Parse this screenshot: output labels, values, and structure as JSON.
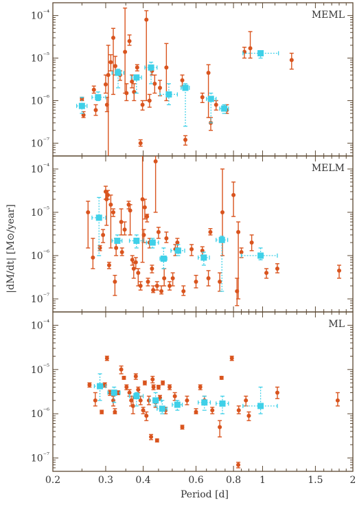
{
  "chart_data": {
    "type": "scatter",
    "xlabel": "Period [d]",
    "ylabel": "|dM/dt| [M⊙/year]",
    "xscale": "log",
    "yscale": "log",
    "xlim": [
      0.2,
      2.0
    ],
    "ylim": [
      5e-08,
      0.0002
    ],
    "xticks": [
      0.2,
      0.3,
      0.4,
      0.6,
      0.8,
      1,
      1.5,
      2
    ],
    "xtick_labels": [
      "0.2",
      "0.3",
      "0.4",
      "0.6",
      "0.8",
      "1",
      "1.5",
      "2"
    ],
    "yticks": [
      1e-07,
      1e-06,
      1e-05,
      0.0001
    ],
    "ytick_labels": [
      "10⁻⁷",
      "10⁻⁶",
      "10⁻⁵",
      "10⁻⁴"
    ],
    "colors": {
      "individual": "#d9541e",
      "binned": "#3fd0e8",
      "frame": "#5a4630"
    },
    "panels": [
      {
        "name": "MEML",
        "individual": [
          [
            0.25,
            1.1e-06,
            1.2e-06,
            1e-06
          ],
          [
            0.253,
            4.6e-07,
            5.5e-07,
            4e-07
          ],
          [
            0.274,
            1.8e-06,
            2.2e-06,
            1.5e-06
          ],
          [
            0.278,
            6e-07,
            8e-07,
            4.5e-07
          ],
          [
            0.3,
            2.4e-06,
            4e-06,
            1.5e-06
          ],
          [
            0.303,
            8e-07,
            1.2e-06,
            5.5e-07
          ],
          [
            0.306,
            4e-06,
            2e-05,
            1e-08
          ],
          [
            0.312,
            8e-06,
            1.2e-05,
            5e-06
          ],
          [
            0.318,
            3e-05,
            5e-05,
            1.4e-06
          ],
          [
            0.323,
            6.5e-06,
            1.1e-05,
            4e-06
          ],
          [
            0.335,
            4e-06,
            5e-06,
            3e-06
          ],
          [
            0.348,
            1.4e-05,
            0.00015,
            1.5e-06
          ],
          [
            0.352,
            1.5e-06,
            2.5e-06,
            1e-06
          ],
          [
            0.36,
            2.5e-05,
            3.5e-05,
            2e-05
          ],
          [
            0.367,
            2.8e-06,
            4e-06,
            2e-06
          ],
          [
            0.373,
            1.6e-06,
            2.5e-06,
            1e-06
          ],
          [
            0.382,
            6e-06,
            7e-06,
            5e-06
          ],
          [
            0.392,
            1e-07,
            1.2e-07,
            8.5e-08
          ],
          [
            0.398,
            8e-07,
            1e-06,
            6e-07
          ],
          [
            0.41,
            8e-05,
            0.00013,
            1e-06
          ],
          [
            0.42,
            1e-06,
            1.4e-06,
            7e-07
          ],
          [
            0.428,
            5e-06,
            6e-06,
            4e-06
          ],
          [
            0.437,
            2.5e-06,
            4e-06,
            1.5e-06
          ],
          [
            0.455,
            2e-06,
            3e-06,
            1.3e-06
          ],
          [
            0.478,
            6e-06,
            2.2e-05,
            1e-06
          ],
          [
            0.54,
            3e-06,
            4e-06,
            2.2e-06
          ],
          [
            0.553,
            1.2e-07,
            1.5e-07,
            9e-08
          ],
          [
            0.63,
            1.2e-06,
            1.5e-06,
            9e-07
          ],
          [
            0.66,
            4.5e-06,
            7e-06,
            4e-07
          ],
          [
            0.672,
            3e-07,
            4e-07,
            2e-07
          ],
          [
            0.7,
            8e-07,
            1e-06,
            6e-07
          ],
          [
            0.76,
            6e-07,
            8e-07,
            5e-07
          ],
          [
            0.87,
            1.4e-05,
            1.8e-05,
            1e-05
          ],
          [
            0.91,
            1.7e-05,
            4.2e-05,
            1e-05
          ],
          [
            1.25,
            9e-06,
            1.3e-05,
            5.5e-06
          ]
        ],
        "binned": [
          [
            0.25,
            7.5e-07,
            0.24,
            0.26,
            1.2e-06,
            5e-07
          ],
          [
            0.283,
            1.2e-06,
            0.27,
            0.3,
            1.6e-06,
            1e-06
          ],
          [
            0.33,
            4.5e-06,
            0.315,
            0.345,
            5.5e-06,
            2e-06
          ],
          [
            0.38,
            3.5e-06,
            0.365,
            0.395,
            4e-06,
            1.5e-06
          ],
          [
            0.425,
            6e-06,
            0.405,
            0.445,
            8e-06,
            2.5e-06
          ],
          [
            0.487,
            1.4e-06,
            0.455,
            0.52,
            2.5e-06,
            8e-07
          ],
          [
            0.553,
            2e-06,
            0.535,
            0.57,
            2.5e-06,
            2.5e-07
          ],
          [
            0.673,
            1.1e-06,
            0.65,
            0.7,
            1.5e-06,
            3e-07
          ],
          [
            0.745,
            6.5e-07,
            0.72,
            0.77,
            8e-07,
            5e-07
          ],
          [
            0.985,
            1.3e-05,
            0.86,
            1.13,
            1.5e-05,
            1e-05
          ]
        ]
      },
      {
        "name": "MELM",
        "individual": [
          [
            0.262,
            1e-05,
            1.8e-05,
            1.5e-06
          ],
          [
            0.272,
            9e-07,
            2.5e-06,
            5e-07
          ],
          [
            0.287,
            1.5e-06,
            1.7e-06,
            1.3e-06
          ],
          [
            0.294,
            3e-06,
            4e-06,
            2e-06
          ],
          [
            0.3,
            3e-05,
            4e-05,
            2e-05
          ],
          [
            0.302,
            2e-05,
            3e-05,
            5e-06
          ],
          [
            0.305,
            2.5e-05,
            3.2e-05,
            2e-05
          ],
          [
            0.308,
            6e-07,
            7e-07,
            5e-07
          ],
          [
            0.312,
            1.5e-05,
            2.5e-05,
            1.5e-06
          ],
          [
            0.318,
            1e-05,
            1.2e-05,
            8e-06
          ],
          [
            0.322,
            2.5e-07,
            3.5e-07,
            1.2e-07
          ],
          [
            0.325,
            1.5e-06,
            2.5e-06,
            1e-06
          ],
          [
            0.338,
            6e-06,
            1.2e-05,
            3e-06
          ],
          [
            0.34,
            1.2e-06,
            1.5e-06,
            1e-06
          ],
          [
            0.347,
            4e-06,
            6e-06,
            3e-06
          ],
          [
            0.358,
            1.5e-05,
            1.8e-05,
            1.2e-05
          ],
          [
            0.362,
            1.1e-05,
            1.5e-05,
            3e-06
          ],
          [
            0.368,
            8e-07,
            1e-06,
            6e-07
          ],
          [
            0.372,
            5e-07,
            7e-07,
            3e-07
          ],
          [
            0.378,
            7e-07,
            9e-07,
            5e-07
          ],
          [
            0.385,
            4e-07,
            5e-07,
            2e-07
          ],
          [
            0.392,
            2e-07,
            2.5e-07,
            1.6e-07
          ],
          [
            0.398,
            2e-05,
            0.00048,
            7e-07
          ],
          [
            0.402,
            3e-06,
            4e-06,
            2e-06
          ],
          [
            0.405,
            1.3e-05,
            2e-05,
            7e-06
          ],
          [
            0.412,
            8e-06,
            9e-06,
            6e-06
          ],
          [
            0.415,
            2.5e-07,
            3e-07,
            2e-07
          ],
          [
            0.42,
            2e-06,
            2.5e-06,
            1.5e-06
          ],
          [
            0.428,
            5e-07,
            6e-07,
            4e-07
          ],
          [
            0.432,
            1.6e-07,
            2e-07,
            1.4e-07
          ],
          [
            0.44,
            0.00015,
            0.00048,
            1e-05
          ],
          [
            0.445,
            2e-07,
            2.5e-07,
            1.6e-07
          ],
          [
            0.45,
            3.5e-06,
            4.5e-06,
            2.5e-06
          ],
          [
            0.46,
            1.5e-07,
            2e-07,
            1.3e-07
          ],
          [
            0.47,
            3e-07,
            5e-07,
            2e-07
          ],
          [
            0.478,
            2.5e-06,
            3.5e-06,
            2e-06
          ],
          [
            0.49,
            2e-07,
            2.5e-07,
            1.6e-07
          ],
          [
            0.502,
            3e-07,
            4e-07,
            2e-07
          ],
          [
            0.512,
            1.4e-06,
            1.8e-06,
            1e-06
          ],
          [
            0.52,
            2e-06,
            2.5e-06,
            1.5e-06
          ],
          [
            0.545,
            1.5e-07,
            2e-07,
            1.2e-07
          ],
          [
            0.58,
            1.4e-06,
            1.8e-06,
            1e-06
          ],
          [
            0.6,
            2.5e-07,
            3.5e-07,
            1.8e-07
          ],
          [
            0.63,
            1.3e-06,
            1.6e-06,
            1e-06
          ],
          [
            0.66,
            3e-07,
            4.5e-07,
            2e-07
          ],
          [
            0.67,
            3.5e-06,
            4.2e-06,
            3e-06
          ],
          [
            0.72,
            2.5e-07,
            4e-07,
            1.5e-07
          ],
          [
            0.735,
            1e-05,
            0.0001,
            1e-06
          ],
          [
            0.8,
            2.5e-05,
            5e-05,
            8e-06
          ],
          [
            0.822,
            1.5e-07,
            3e-07,
            7e-08
          ],
          [
            0.83,
            3.5e-06,
            6e-06,
            1e-07
          ],
          [
            0.85,
            1.2e-06,
            1.5e-06,
            9e-07
          ],
          [
            0.92,
            2e-06,
            3e-06,
            1.3e-06
          ],
          [
            1.03,
            4e-07,
            5e-07,
            3e-07
          ],
          [
            1.12,
            5e-07,
            6.5e-07,
            4e-07
          ],
          [
            1.8,
            4.5e-07,
            6e-07,
            3e-07
          ]
        ],
        "binned": [
          [
            0.285,
            7.5e-06,
            0.27,
            0.3,
            2.2e-05,
            1e-06
          ],
          [
            0.328,
            2.2e-06,
            0.315,
            0.34,
            3e-06,
            2e-06
          ],
          [
            0.38,
            2.2e-06,
            0.36,
            0.4,
            3e-06,
            1.5e-06
          ],
          [
            0.43,
            2e-06,
            0.41,
            0.45,
            2.5e-06,
            1.5e-06
          ],
          [
            0.468,
            8.5e-07,
            0.455,
            0.48,
            1.5e-06,
            5e-07
          ],
          [
            0.523,
            1.3e-06,
            0.495,
            0.55,
            1.8e-06,
            1e-06
          ],
          [
            0.637,
            9e-07,
            0.61,
            0.665,
            1.2e-06,
            6e-07
          ],
          [
            0.732,
            2.3e-06,
            0.7,
            0.765,
            2.8e-06,
            1.5e-07
          ],
          [
            0.985,
            1e-06,
            0.85,
            1.12,
            1.5e-06,
            8e-07
          ]
        ]
      },
      {
        "name": "ML",
        "individual": [
          [
            0.265,
            4.5e-06,
            5e-06,
            4e-06
          ],
          [
            0.277,
            2e-06,
            3e-06,
            1.5e-06
          ],
          [
            0.291,
            1.1e-06,
            1.2e-06,
            1e-06
          ],
          [
            0.298,
            4.5e-06,
            5e-06,
            4e-06
          ],
          [
            0.303,
            1.8e-05,
            2e-05,
            1.6e-05
          ],
          [
            0.31,
            3e-06,
            3.4e-06,
            2.6e-06
          ],
          [
            0.318,
            2e-06,
            2.5e-06,
            1.5e-06
          ],
          [
            0.322,
            1.1e-06,
            1.3e-06,
            1e-06
          ],
          [
            0.33,
            3e-06,
            3.3e-06,
            2.7e-06
          ],
          [
            0.338,
            1e-05,
            1.2e-05,
            8e-06
          ],
          [
            0.345,
            6.5e-06,
            7e-06,
            6e-06
          ],
          [
            0.352,
            4e-06,
            4.5e-06,
            3.5e-06
          ],
          [
            0.36,
            3e-06,
            3.5e-06,
            2.5e-06
          ],
          [
            0.365,
            2e-06,
            2.5e-06,
            1.5e-06
          ],
          [
            0.37,
            1.5e-06,
            2.5e-06,
            1e-06
          ],
          [
            0.378,
            7e-06,
            8e-06,
            6e-06
          ],
          [
            0.385,
            3.5e-06,
            4e-06,
            3e-06
          ],
          [
            0.392,
            2e-06,
            2.5e-06,
            1.6e-06
          ],
          [
            0.4,
            1.2e-06,
            1.4e-06,
            1e-06
          ],
          [
            0.405,
            5e-06,
            5.5e-06,
            4.5e-06
          ],
          [
            0.41,
            9e-07,
            1.1e-06,
            7e-07
          ],
          [
            0.418,
            2e-06,
            2.5e-06,
            1.6e-06
          ],
          [
            0.425,
            3e-07,
            3.4e-07,
            2.6e-07
          ],
          [
            0.43,
            6e-06,
            7e-06,
            5e-06
          ],
          [
            0.433,
            4e-06,
            4.5e-06,
            3.5e-06
          ],
          [
            0.44,
            1.8e-06,
            2.2e-06,
            1.4e-06
          ],
          [
            0.445,
            2.5e-07,
            2.7e-07,
            2.3e-07
          ],
          [
            0.45,
            4e-06,
            4.4e-06,
            3.6e-06
          ],
          [
            0.455,
            2.3e-06,
            2.6e-06,
            2e-06
          ],
          [
            0.465,
            5e-06,
            5.5e-06,
            4.5e-06
          ],
          [
            0.475,
            1.2e-06,
            1.4e-06,
            1e-06
          ],
          [
            0.49,
            4e-06,
            4.5e-06,
            3.5e-06
          ],
          [
            0.51,
            2.5e-06,
            3e-06,
            2e-06
          ],
          [
            0.54,
            5e-07,
            5.5e-07,
            4.5e-07
          ],
          [
            0.56,
            2e-06,
            2.5e-06,
            1.6e-06
          ],
          [
            0.6,
            1.1e-06,
            1.3e-06,
            1e-06
          ],
          [
            0.62,
            4e-06,
            4.5e-06,
            3.5e-06
          ],
          [
            0.64,
            2e-06,
            2.5e-06,
            1.6e-06
          ],
          [
            0.68,
            1.2e-06,
            1.4e-06,
            1e-06
          ],
          [
            0.72,
            5e-07,
            7e-07,
            3e-07
          ],
          [
            0.73,
            6.5e-06,
            7e-06,
            6e-06
          ],
          [
            0.79,
            1.8e-05,
            2e-05,
            1.6e-05
          ],
          [
            0.83,
            7e-08,
            8e-08,
            6e-08
          ],
          [
            0.833,
            1.2e-06,
            1.5e-06,
            1e-06
          ],
          [
            0.88,
            2e-06,
            2.5e-06,
            1.5e-06
          ],
          [
            0.9,
            9e-07,
            1.1e-06,
            7e-07
          ],
          [
            1.12,
            3e-06,
            4e-06,
            2.2e-06
          ],
          [
            1.78,
            2e-06,
            3e-06,
            1.5e-06
          ]
        ],
        "binned": [
          [
            0.287,
            4.2e-06,
            0.275,
            0.3,
            8e-06,
            2e-06
          ],
          [
            0.32,
            3e-06,
            0.305,
            0.335,
            4e-06,
            1.8e-06
          ],
          [
            0.38,
            2.5e-06,
            0.36,
            0.4,
            3e-06,
            1.5e-06
          ],
          [
            0.44,
            2e-06,
            0.42,
            0.46,
            3e-06,
            1.5e-06
          ],
          [
            0.463,
            1.3e-06,
            0.445,
            0.48,
            2e-06,
            1e-06
          ],
          [
            0.52,
            1.6e-06,
            0.5,
            0.54,
            2e-06,
            1.2e-06
          ],
          [
            0.64,
            1.8e-06,
            0.61,
            0.67,
            2.5e-06,
            1.2e-06
          ],
          [
            0.735,
            1.7e-06,
            0.7,
            0.77,
            2.5e-06,
            1e-06
          ],
          [
            0.985,
            1.5e-06,
            0.86,
            1.12,
            4e-06,
            1e-06
          ]
        ]
      }
    ]
  }
}
